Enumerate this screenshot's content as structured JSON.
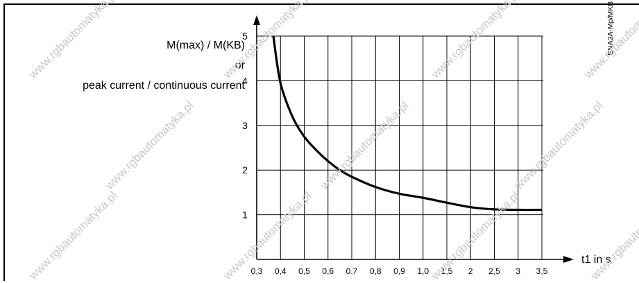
{
  "watermark": "www.rgbautomatyka.pl",
  "chart_data": {
    "type": "line",
    "ylabel_lines": [
      "M(max) / M(KB)",
      "or",
      "peak current / continuous current"
    ],
    "xlabel": "t1 in s",
    "side_code": "ENA3A-Mp/MKB",
    "x_ticks": [
      "0,3",
      "0,4",
      "0,5",
      "0,6",
      "0,7",
      "0,8",
      "0,9",
      "1,0",
      "1,5",
      "2",
      "2,5",
      "3",
      "3,5"
    ],
    "y_ticks": [
      "1",
      "2",
      "3",
      "4",
      "5"
    ],
    "ylim": [
      0,
      5
    ],
    "grid": true,
    "series": [
      {
        "x": [
          0.37,
          0.4,
          0.45,
          0.5,
          0.55,
          0.6,
          0.65,
          0.7,
          0.8,
          0.9,
          1.0,
          1.5,
          2,
          2.5,
          3,
          3.5
        ],
        "y": [
          5.0,
          3.95,
          3.2,
          2.75,
          2.45,
          2.2,
          2.0,
          1.85,
          1.62,
          1.47,
          1.38,
          1.27,
          1.17,
          1.12,
          1.11,
          1.11
        ]
      }
    ]
  }
}
